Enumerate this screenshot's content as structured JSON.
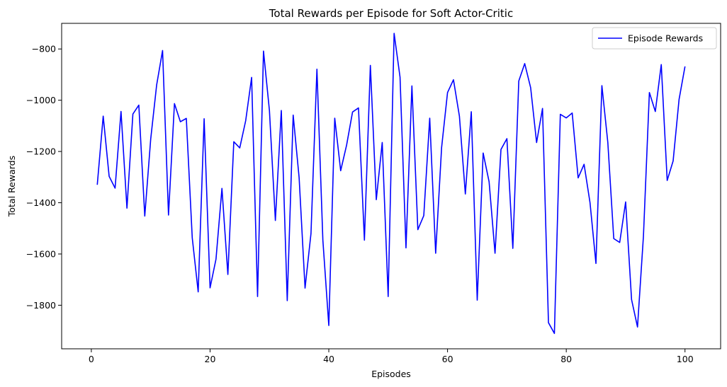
{
  "chart_data": {
    "type": "line",
    "title": "Total Rewards per Episode for Soft Actor-Critic",
    "xlabel": "Episodes",
    "ylabel": "Total Rewards",
    "xlim": [
      -5,
      106
    ],
    "ylim": [
      -1970,
      -700
    ],
    "xticks": [
      0,
      20,
      40,
      60,
      80,
      100
    ],
    "yticks": [
      -1800,
      -1600,
      -1400,
      -1200,
      -1000,
      -800
    ],
    "xtick_labels": [
      "0",
      "20",
      "40",
      "60",
      "80",
      "100"
    ],
    "ytick_labels": [
      "−1800",
      "−1600",
      "−1400",
      "−1200",
      "−1000",
      "−800"
    ],
    "grid": false,
    "legend_position": "upper right",
    "series": [
      {
        "name": "Episode Rewards",
        "color": "#0000ff",
        "x": [
          1,
          2,
          3,
          4,
          5,
          6,
          7,
          8,
          9,
          10,
          11,
          12,
          13,
          14,
          15,
          16,
          17,
          18,
          19,
          20,
          21,
          22,
          23,
          24,
          25,
          26,
          27,
          28,
          29,
          30,
          31,
          32,
          33,
          34,
          35,
          36,
          37,
          38,
          39,
          40,
          41,
          42,
          43,
          44,
          45,
          46,
          47,
          48,
          49,
          50,
          51,
          52,
          53,
          54,
          55,
          56,
          57,
          58,
          59,
          60,
          61,
          62,
          63,
          64,
          65,
          66,
          67,
          68,
          69,
          70,
          71,
          72,
          73,
          74,
          75,
          76,
          77,
          78,
          79,
          80,
          81,
          82,
          83,
          84,
          85,
          86,
          87,
          88,
          89,
          90,
          91,
          92,
          93,
          94,
          95,
          96,
          97,
          98,
          99,
          100
        ],
        "values": [
          -1330,
          -1062,
          -1297,
          -1343,
          -1044,
          -1421,
          -1054,
          -1019,
          -1452,
          -1152,
          -941,
          -806,
          -1448,
          -1013,
          -1084,
          -1071,
          -1537,
          -1748,
          -1072,
          -1732,
          -1620,
          -1344,
          -1680,
          -1162,
          -1186,
          -1080,
          -911,
          -1766,
          -808,
          -1040,
          -1469,
          -1040,
          -1782,
          -1058,
          -1302,
          -1733,
          -1520,
          -879,
          -1546,
          -1879,
          -1070,
          -1275,
          -1175,
          -1046,
          -1030,
          -1546,
          -864,
          -1388,
          -1165,
          -1766,
          -739,
          -910,
          -1576,
          -944,
          -1505,
          -1450,
          -1070,
          -1597,
          -1185,
          -970,
          -920,
          -1062,
          -1366,
          -1045,
          -1780,
          -1206,
          -1318,
          -1597,
          -1192,
          -1150,
          -1578,
          -925,
          -857,
          -951,
          -1165,
          -1032,
          -1868,
          -1910,
          -1055,
          -1069,
          -1050,
          -1303,
          -1250,
          -1400,
          -1637,
          -943,
          -1165,
          -1540,
          -1555,
          -1397,
          -1778,
          -1885,
          -1530,
          -970,
          -1044,
          -861,
          -1313,
          -1237,
          -997,
          -868
        ]
      }
    ]
  }
}
